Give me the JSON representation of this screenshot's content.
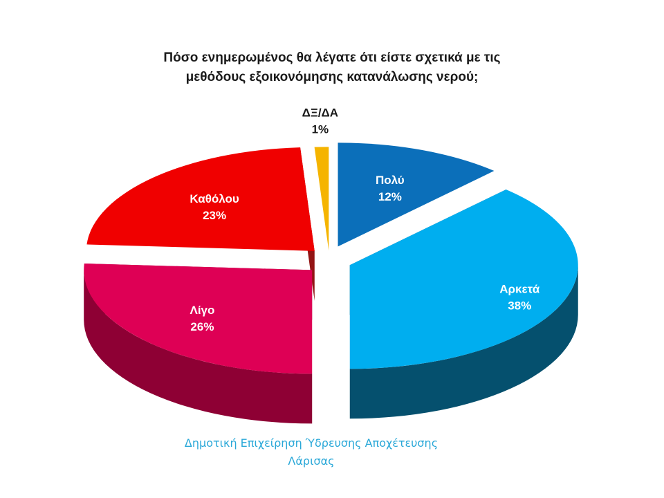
{
  "chart_data": {
    "type": "pie",
    "title_lines": [
      "Πόσο ενημερωμένος θα λέγατε ότι είστε σχετικά με τις",
      "μεθόδους εξοικονόμησης κατανάλωσης νερού;"
    ],
    "slices": [
      {
        "label": "Πολύ",
        "value": 12,
        "value_label": "12%",
        "color": "#0b6fba",
        "side_color": "#07406e"
      },
      {
        "label": "Αρκετά",
        "value": 38,
        "value_label": "38%",
        "color": "#00aeef",
        "side_color": "#05506e"
      },
      {
        "label": "Λίγο",
        "value": 26,
        "value_label": "26%",
        "color": "#de0055",
        "side_color": "#8e0034"
      },
      {
        "label": "Καθόλου",
        "value": 23,
        "value_label": "23%",
        "color": "#f00000",
        "side_color": "#8a0000"
      },
      {
        "label": "ΔΞ/ΔΑ",
        "value": 1,
        "value_label": "1%",
        "color": "#f5b400",
        "side_color": "#a07000"
      }
    ]
  },
  "footer": {
    "source_lines": [
      "Δημοτική Επιχείρηση Ύδρευσης Αποχέτευσης",
      "Λάρισας"
    ]
  }
}
